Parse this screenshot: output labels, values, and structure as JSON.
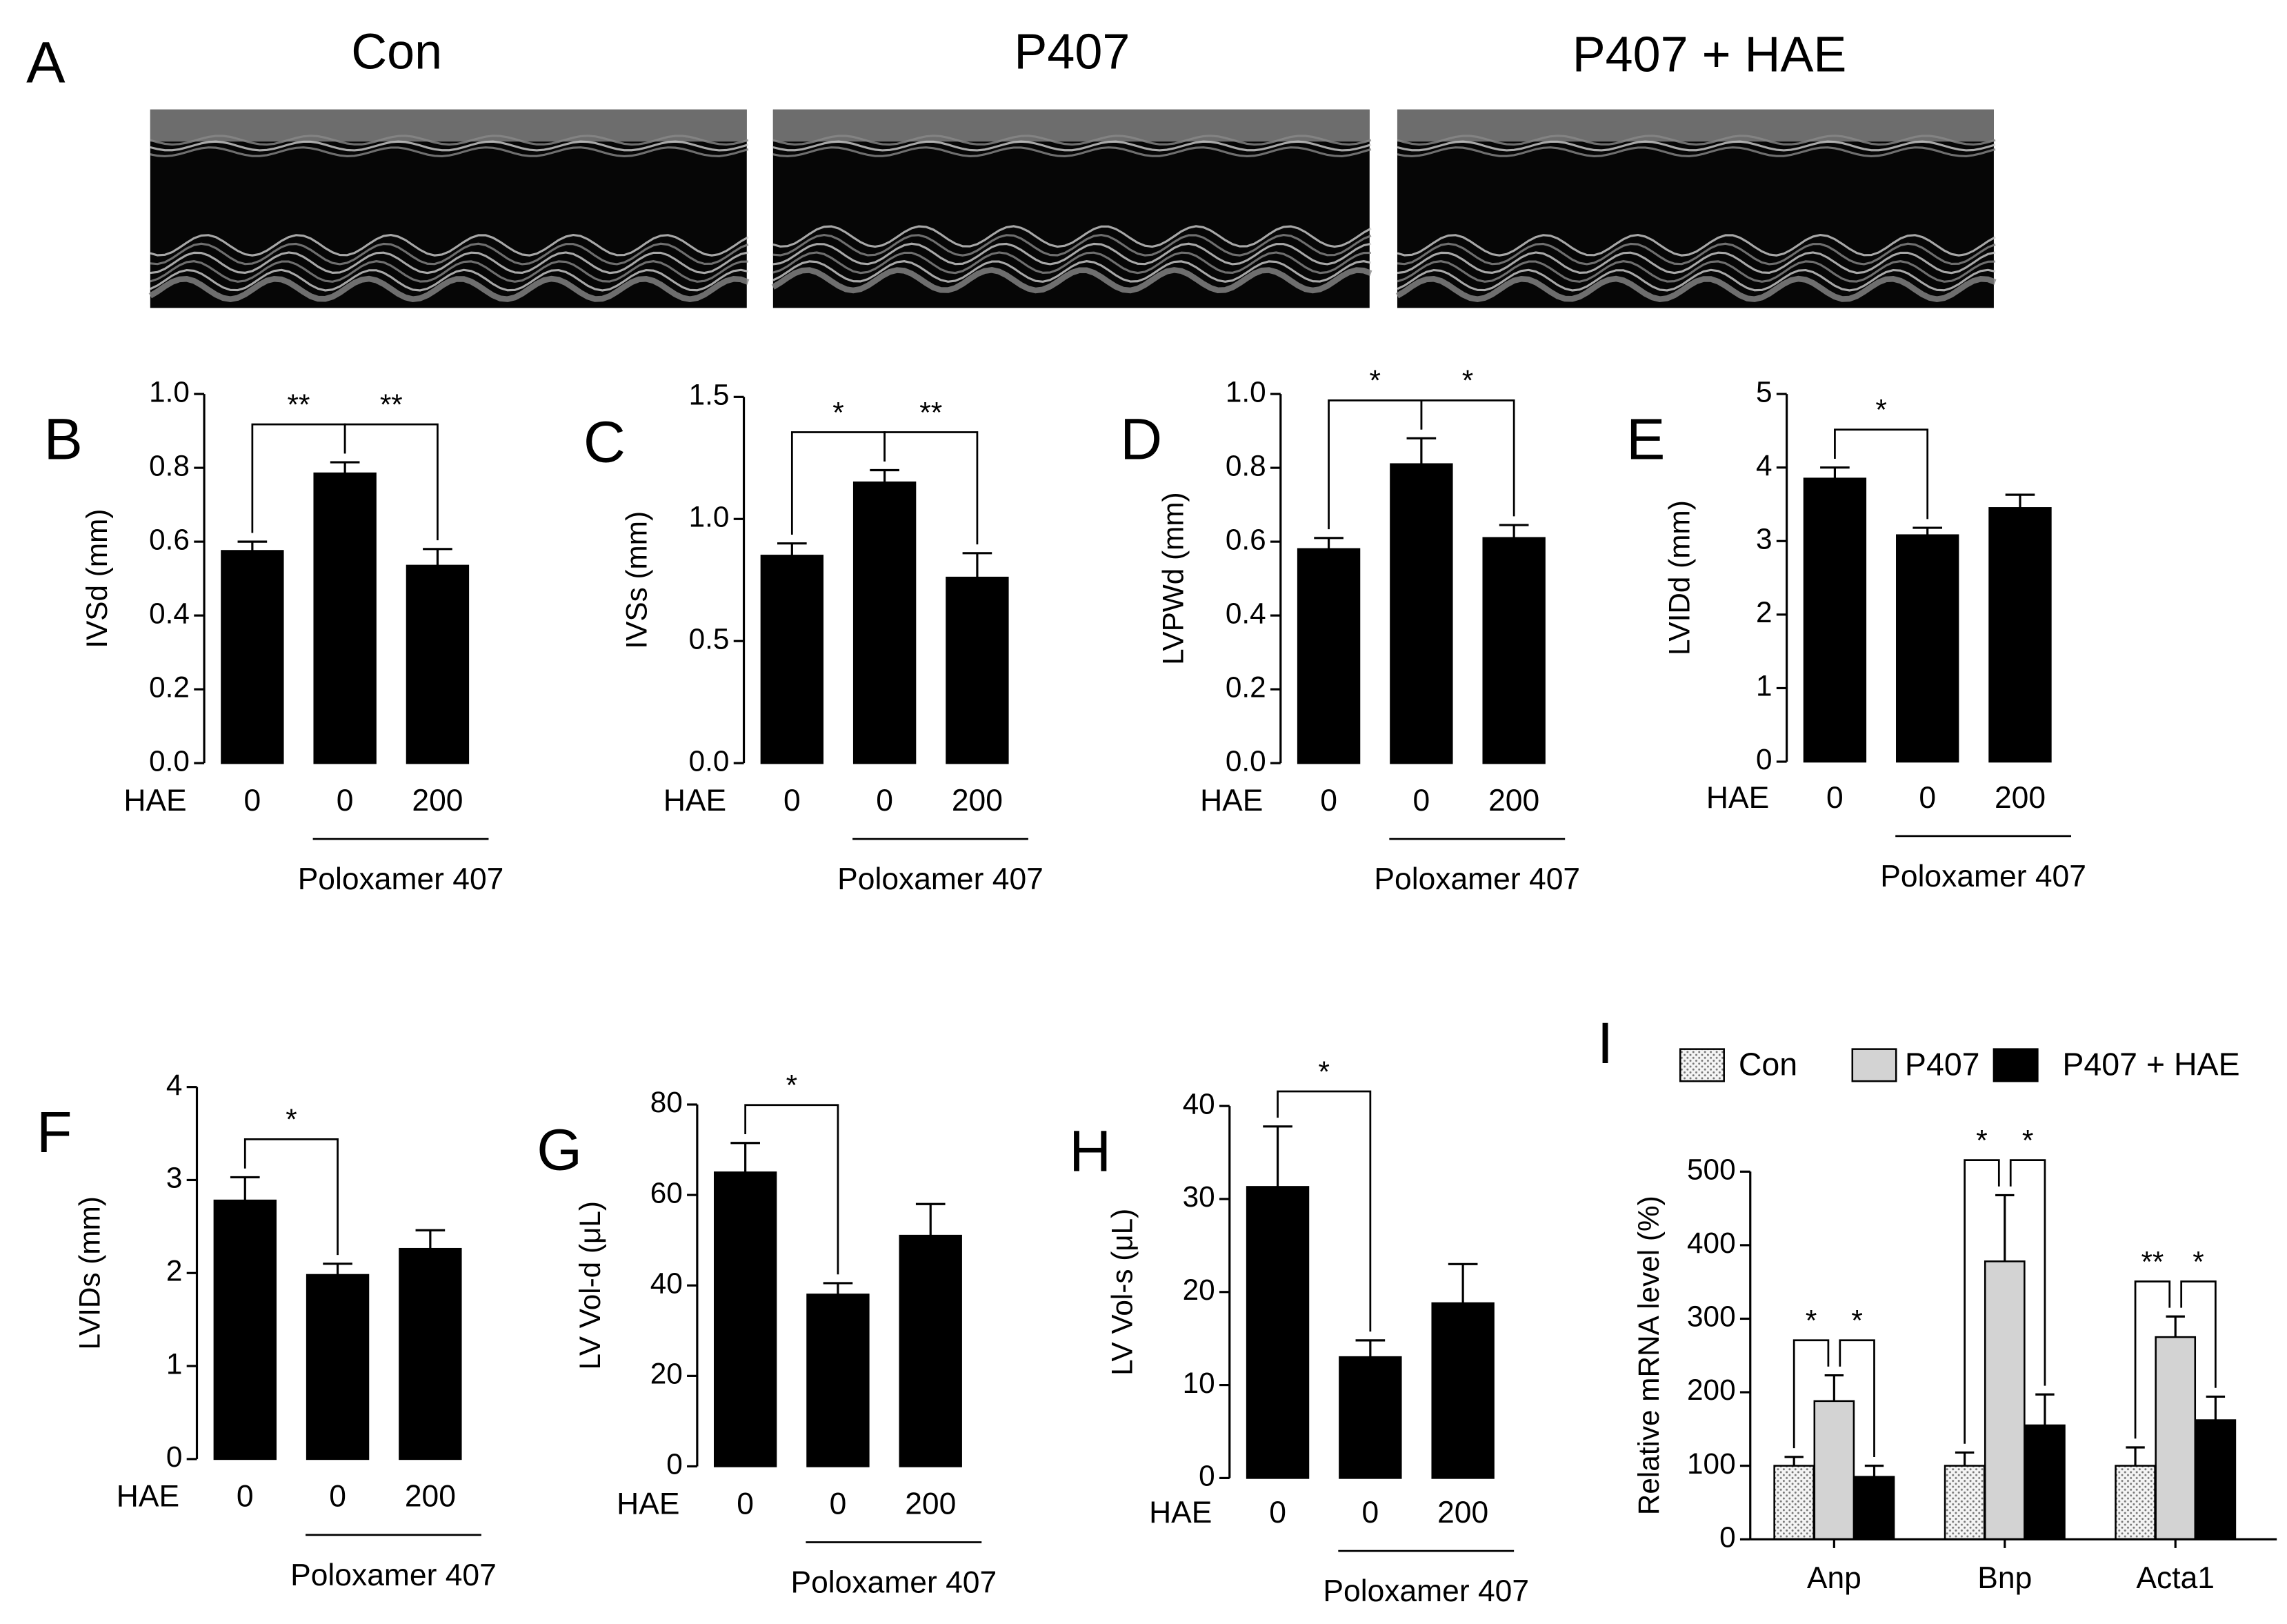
{
  "panel_a": {
    "label": "A",
    "titles": [
      "Con",
      "P407",
      "P407 + HAE"
    ]
  },
  "chart_data": [
    {
      "type": "bar",
      "panel": "B",
      "y_label": "IVSd (mm)",
      "x_row_label": "HAE",
      "group_label": "Poloxamer 407",
      "categories": [
        "0",
        "0",
        "200"
      ],
      "values": [
        0.575,
        0.785,
        0.535
      ],
      "errors": [
        0.025,
        0.03,
        0.045
      ],
      "color": "#000000",
      "ylim": [
        0,
        1
      ],
      "yticks": [
        {
          "value": 0,
          "label": "0.0"
        },
        {
          "value": 0.2,
          "label": "0.2"
        },
        {
          "value": 0.4,
          "label": "0.4"
        },
        {
          "value": 0.6,
          "label": "0.6"
        },
        {
          "value": 0.8,
          "label": "0.8"
        },
        {
          "value": 1,
          "label": "1.0"
        }
      ],
      "significance": [
        "**",
        "**"
      ]
    },
    {
      "type": "bar",
      "panel": "C",
      "y_label": "IVSs (mm)",
      "x_row_label": "HAE",
      "group_label": "Poloxamer 407",
      "categories": [
        "0",
        "0",
        "200"
      ],
      "values": [
        0.85,
        1.15,
        0.76
      ],
      "errors": [
        0.05,
        0.05,
        0.1
      ],
      "color": "#000000",
      "ylim": [
        0,
        1.5
      ],
      "yticks": [
        {
          "value": 0,
          "label": "0.0"
        },
        0.5,
        {
          "value": 1,
          "label": "1.0"
        },
        1.5
      ],
      "significance": [
        "*",
        "**"
      ]
    },
    {
      "type": "bar",
      "panel": "D",
      "y_label": "LVPWd (mm)",
      "x_row_label": "HAE",
      "group_label": "Poloxamer 407",
      "categories": [
        "0",
        "0",
        "200"
      ],
      "values": [
        0.58,
        0.81,
        0.61
      ],
      "errors": [
        0.03,
        0.07,
        0.035
      ],
      "color": "#000000",
      "ylim": [
        0,
        1
      ],
      "yticks": [
        {
          "value": 0,
          "label": "0.0"
        },
        {
          "value": 0.2,
          "label": "0.2"
        },
        {
          "value": 0.4,
          "label": "0.4"
        },
        {
          "value": 0.6,
          "label": "0.6"
        },
        {
          "value": 0.8,
          "label": "0.8"
        },
        {
          "value": 1,
          "label": "1.0"
        }
      ],
      "significance": [
        "*",
        "*"
      ]
    },
    {
      "type": "bar",
      "panel": "E",
      "y_label": "LVIDd (mm)",
      "x_row_label": "HAE",
      "group_label": "Poloxamer 407",
      "categories": [
        "0",
        "0",
        "200"
      ],
      "values": [
        3.85,
        3.08,
        3.45
      ],
      "errors": [
        0.15,
        0.1,
        0.18
      ],
      "color": "#000000",
      "ylim": [
        0,
        5
      ],
      "yticks": [
        0,
        1,
        2,
        3,
        4,
        5
      ],
      "significance": [
        "*",
        null
      ]
    },
    {
      "type": "bar",
      "panel": "F",
      "y_label": "LVIDs (mm)",
      "x_row_label": "HAE",
      "group_label": "Poloxamer 407",
      "categories": [
        "0",
        "0",
        "200"
      ],
      "values": [
        2.78,
        1.98,
        2.26
      ],
      "errors": [
        0.25,
        0.12,
        0.2
      ],
      "color": "#000000",
      "ylim": [
        0,
        4
      ],
      "yticks": [
        0,
        1,
        2,
        3,
        4
      ],
      "significance": [
        "*",
        null
      ]
    },
    {
      "type": "bar",
      "panel": "G",
      "y_label": "LV Vol-d (μL)",
      "x_row_label": "HAE",
      "group_label": "Poloxamer 407",
      "categories": [
        "0",
        "0",
        "200"
      ],
      "values": [
        65,
        38,
        51
      ],
      "errors": [
        6.5,
        2.5,
        7
      ],
      "color": "#000000",
      "ylim": [
        0,
        80
      ],
      "yticks": [
        0,
        20,
        40,
        60,
        80
      ],
      "significance": [
        "*",
        null
      ]
    },
    {
      "type": "bar",
      "panel": "H",
      "y_label": "LV Vol-s (μL)",
      "x_row_label": "HAE",
      "group_label": "Poloxamer 407",
      "categories": [
        "0",
        "0",
        "200"
      ],
      "values": [
        31.3,
        13,
        18.8
      ],
      "errors": [
        6.5,
        1.8,
        4.2
      ],
      "color": "#000000",
      "ylim": [
        0,
        40
      ],
      "yticks": [
        0,
        10,
        20,
        30,
        40
      ],
      "significance": [
        "*",
        null
      ]
    },
    {
      "type": "bar",
      "panel": "I",
      "y_label": "Relative mRNA level (%)",
      "categories": [
        "Anp",
        "Bnp",
        "Acta1"
      ],
      "series": [
        {
          "name": "Con",
          "color": "#f0f0f0",
          "fill_style": "dotted",
          "values": [
            100,
            100,
            100
          ],
          "errors": [
            12,
            18,
            25
          ]
        },
        {
          "name": "P407",
          "color": "#d3d3d3",
          "values": [
            188,
            378,
            275
          ],
          "errors": [
            35,
            90,
            28
          ]
        },
        {
          "name": "P407 + HAE",
          "color": "#000000",
          "values": [
            85,
            155,
            162
          ],
          "errors": [
            15,
            42,
            32
          ]
        }
      ],
      "ylim": [
        0,
        500
      ],
      "yticks": [
        0,
        100,
        200,
        300,
        400,
        500
      ],
      "significance": [
        [
          "*",
          "*"
        ],
        [
          "*",
          "*"
        ],
        [
          "**",
          "*"
        ]
      ]
    }
  ]
}
